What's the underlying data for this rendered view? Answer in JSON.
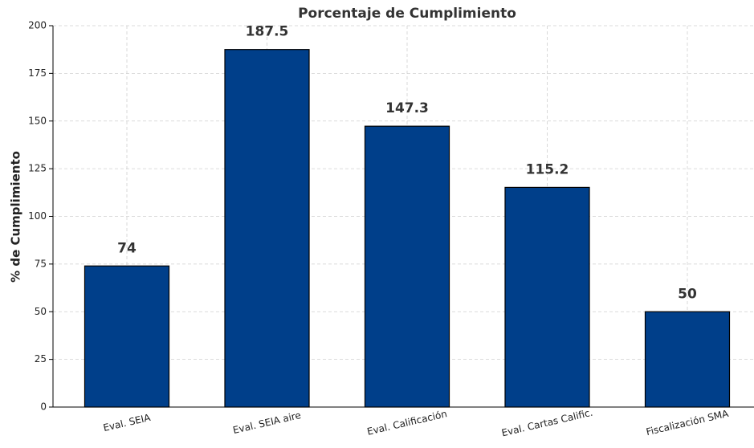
{
  "chart_data": {
    "type": "bar",
    "title": "Porcentaje de Cumplimiento",
    "y_label": "% de Cumplimiento",
    "categories": [
      "Eval. SEIA",
      "Eval. SEIA aire",
      "Eval. Calificación",
      "Eval. Cartas Calific.",
      "Fiscalización SMA"
    ],
    "values": [
      74,
      187.5,
      147.3,
      115.2,
      50
    ],
    "color": "#003f8a",
    "ylim": [
      0,
      200
    ],
    "yticks": [
      0,
      25,
      50,
      75,
      100,
      125,
      150,
      175,
      200
    ],
    "grid": true
  }
}
